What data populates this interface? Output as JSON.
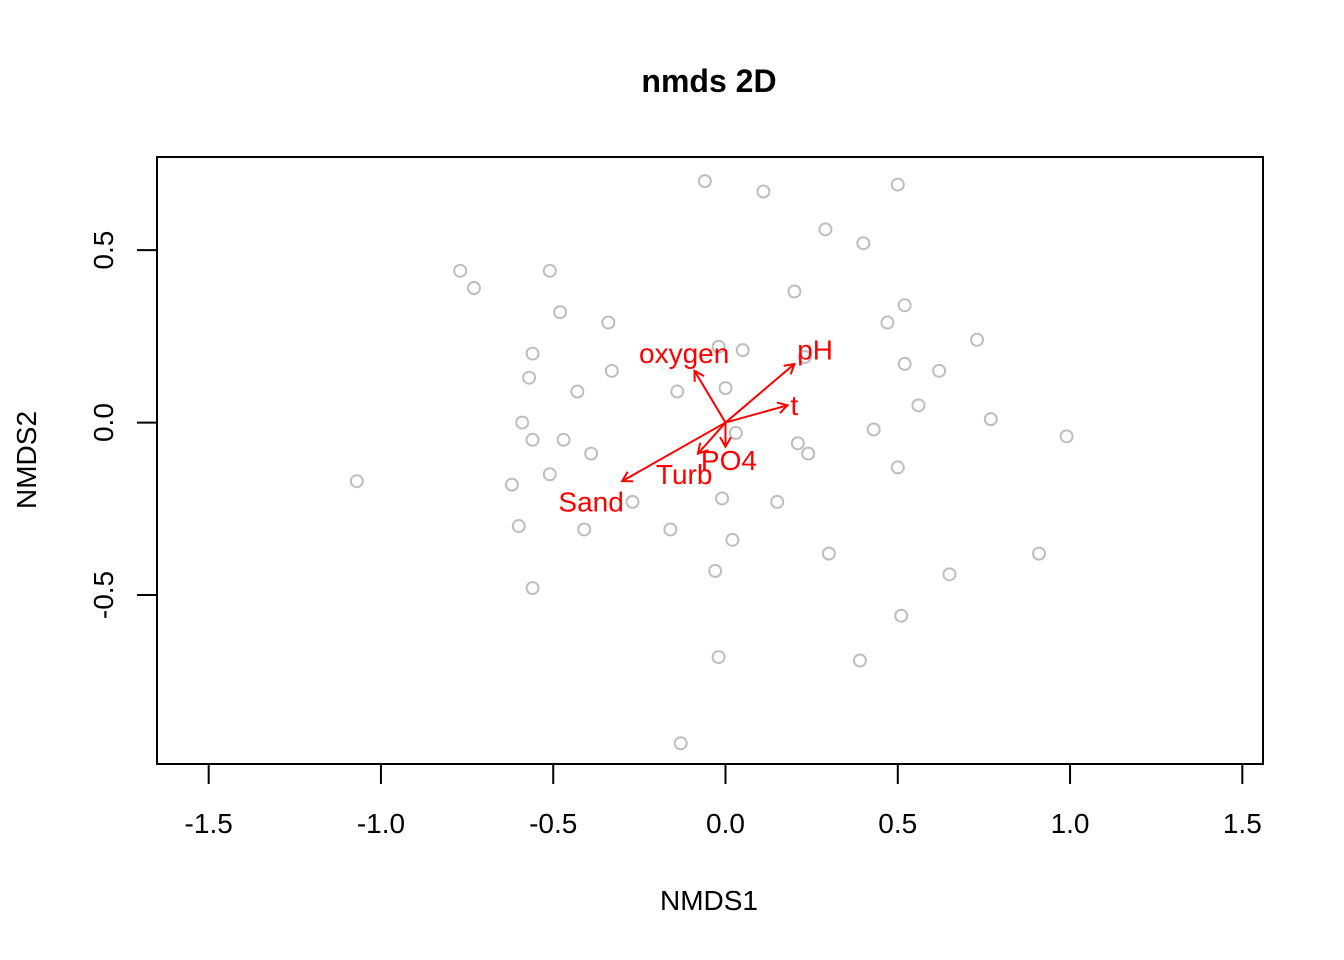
{
  "chart_data": {
    "type": "scatter",
    "title": "nmds 2D",
    "xlabel": "NMDS1",
    "ylabel": "NMDS2",
    "xlim": [
      -1.65,
      1.56
    ],
    "ylim": [
      -0.99,
      0.77
    ],
    "x_ticks": [
      "-1.5",
      "-1.0",
      "-0.5",
      "0.0",
      "0.5",
      "1.0",
      "1.5"
    ],
    "y_ticks": [
      "-0.5",
      "0.0",
      "0.5"
    ],
    "point_color": "#bebebe",
    "vector_color": "#ff0000",
    "points": [
      {
        "x": -0.06,
        "y": 0.7
      },
      {
        "x": 0.11,
        "y": 0.67
      },
      {
        "x": 0.5,
        "y": 0.69
      },
      {
        "x": 0.29,
        "y": 0.56
      },
      {
        "x": 0.4,
        "y": 0.52
      },
      {
        "x": -0.77,
        "y": 0.44
      },
      {
        "x": -0.73,
        "y": 0.39
      },
      {
        "x": -0.51,
        "y": 0.44
      },
      {
        "x": -0.48,
        "y": 0.32
      },
      {
        "x": -0.34,
        "y": 0.29
      },
      {
        "x": 0.2,
        "y": 0.38
      },
      {
        "x": 0.52,
        "y": 0.34
      },
      {
        "x": 0.47,
        "y": 0.29
      },
      {
        "x": 0.73,
        "y": 0.24
      },
      {
        "x": -0.56,
        "y": 0.2
      },
      {
        "x": -0.57,
        "y": 0.13
      },
      {
        "x": -0.33,
        "y": 0.15
      },
      {
        "x": -0.02,
        "y": 0.22
      },
      {
        "x": 0.05,
        "y": 0.21
      },
      {
        "x": 0.23,
        "y": 0.19
      },
      {
        "x": 0.52,
        "y": 0.17
      },
      {
        "x": 0.62,
        "y": 0.15
      },
      {
        "x": -0.43,
        "y": 0.09
      },
      {
        "x": -0.14,
        "y": 0.09
      },
      {
        "x": 0.0,
        "y": 0.1
      },
      {
        "x": 0.56,
        "y": 0.05
      },
      {
        "x": 0.77,
        "y": 0.01
      },
      {
        "x": -0.59,
        "y": 0.0
      },
      {
        "x": -0.56,
        "y": -0.05
      },
      {
        "x": -0.47,
        "y": -0.05
      },
      {
        "x": -0.39,
        "y": -0.09
      },
      {
        "x": 0.03,
        "y": -0.03
      },
      {
        "x": 0.21,
        "y": -0.06
      },
      {
        "x": 0.24,
        "y": -0.09
      },
      {
        "x": 0.43,
        "y": -0.02
      },
      {
        "x": 0.99,
        "y": -0.04
      },
      {
        "x": -1.07,
        "y": -0.17
      },
      {
        "x": -0.62,
        "y": -0.18
      },
      {
        "x": -0.51,
        "y": -0.15
      },
      {
        "x": 0.5,
        "y": -0.13
      },
      {
        "x": -0.27,
        "y": -0.23
      },
      {
        "x": -0.01,
        "y": -0.22
      },
      {
        "x": 0.15,
        "y": -0.23
      },
      {
        "x": -0.6,
        "y": -0.3
      },
      {
        "x": -0.41,
        "y": -0.31
      },
      {
        "x": -0.16,
        "y": -0.31
      },
      {
        "x": 0.02,
        "y": -0.34
      },
      {
        "x": 0.3,
        "y": -0.38
      },
      {
        "x": 0.91,
        "y": -0.38
      },
      {
        "x": -0.56,
        "y": -0.48
      },
      {
        "x": -0.03,
        "y": -0.43
      },
      {
        "x": 0.65,
        "y": -0.44
      },
      {
        "x": 0.51,
        "y": -0.56
      },
      {
        "x": -0.02,
        "y": -0.68
      },
      {
        "x": 0.39,
        "y": -0.69
      },
      {
        "x": -0.13,
        "y": -0.93
      }
    ],
    "vectors": [
      {
        "name": "oxygen",
        "x": -0.09,
        "y": 0.15,
        "label_x": -0.12,
        "label_y": 0.2
      },
      {
        "name": "pH",
        "x": 0.2,
        "y": 0.17,
        "label_x": 0.26,
        "label_y": 0.21
      },
      {
        "name": "t",
        "x": 0.18,
        "y": 0.05,
        "label_x": 0.2,
        "label_y": 0.05
      },
      {
        "name": "PO4",
        "x": 0.0,
        "y": -0.07,
        "label_x": 0.01,
        "label_y": -0.11
      },
      {
        "name": "Turb",
        "x": -0.08,
        "y": -0.09,
        "label_x": -0.12,
        "label_y": -0.15
      },
      {
        "name": "Sand",
        "x": -0.3,
        "y": -0.17,
        "label_x": -0.39,
        "label_y": -0.23
      }
    ]
  }
}
